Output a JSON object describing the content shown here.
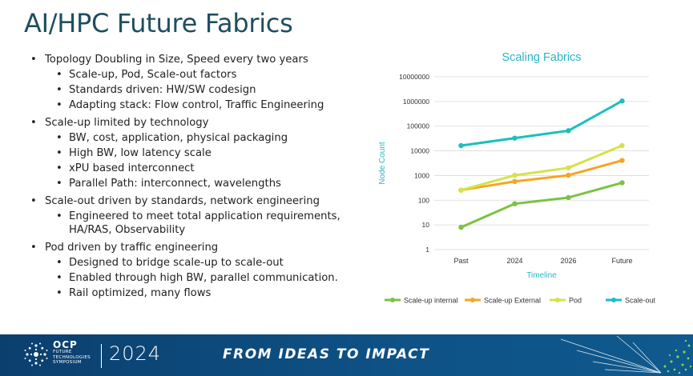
{
  "slide": {
    "title": "AI/HPC Future Fabrics"
  },
  "bullets": [
    {
      "text": "Topology Doubling in Size, Speed every two years",
      "sub": [
        "Scale-up, Pod, Scale-out factors",
        "Standards driven: HW/SW codesign",
        "Adapting stack: Flow control, Traffic Engineering"
      ]
    },
    {
      "text": "Scale-up limited by technology",
      "sub": [
        "BW, cost, application, physical packaging",
        "High BW, low latency scale",
        "xPU based interconnect",
        "Parallel Path: interconnect, wavelengths"
      ]
    },
    {
      "text": "Scale-out driven by standards, network engineering",
      "sub": [
        "Engineered to meet total application requirements, HA/RAS, Observability"
      ]
    },
    {
      "text": "Pod driven by traffic engineering",
      "sub": [
        "Designed to bridge scale-up to scale-out",
        "Enabled through high BW, parallel communication.",
        "Rail optimized, many flows"
      ]
    }
  ],
  "chart_data": {
    "type": "line",
    "title": "Scaling  Fabrics",
    "xlabel": "Timeline",
    "ylabel": "Node Count",
    "y_scale": "log",
    "ylim": [
      1,
      10000000
    ],
    "yticks": [
      "1",
      "10",
      "100",
      "1000",
      "10000",
      "100000",
      "1000000",
      "10000000"
    ],
    "categories": [
      "Past",
      "2024",
      "2026",
      "Future"
    ],
    "legend_position": "bottom",
    "grid": true,
    "series": [
      {
        "name": "Scale-up internal",
        "color": "#7cc242",
        "values": [
          8,
          72,
          128,
          512
        ]
      },
      {
        "name": "Scale-up External",
        "color": "#f5a623",
        "values": [
          256,
          576,
          1024,
          4096
        ]
      },
      {
        "name": "Pod",
        "color": "#d4e34a",
        "values": [
          256,
          1024,
          2048,
          16384
        ]
      },
      {
        "name": "Scale-out",
        "color": "#1bbfbf",
        "values": [
          16384,
          32768,
          65536,
          1048576
        ]
      }
    ]
  },
  "footer": {
    "ocp": "OCP",
    "ocp_line1": "FUTURE",
    "ocp_line2": "TECHNOLOGIES",
    "ocp_line3": "SYMPOSIUM",
    "year": "2024",
    "tagline": "FROM IDEAS TO IMPACT"
  }
}
